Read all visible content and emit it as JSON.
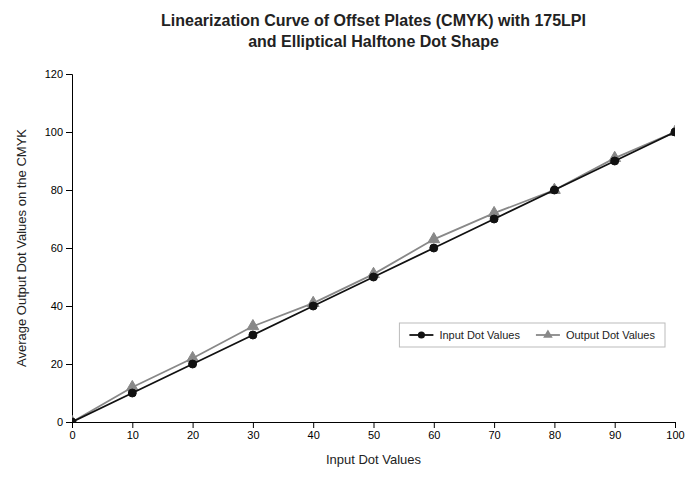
{
  "chart_data": {
    "type": "line",
    "title": "Linearization Curve of Offset Plates (CMYK) with 175LPI\nand Elliptical Halftone Dot Shape",
    "xlabel": "Input Dot Values",
    "ylabel": "Average Output Dot Values on the CMYK",
    "x": [
      0,
      10,
      20,
      30,
      40,
      50,
      60,
      70,
      80,
      90,
      100
    ],
    "series": [
      {
        "name": "Input Dot Values",
        "color": "#111111",
        "marker": "circle",
        "line_style": "solid",
        "values": [
          0,
          10,
          20,
          30,
          40,
          50,
          60,
          70,
          80,
          90,
          100
        ]
      },
      {
        "name": "Output Dot Values",
        "color": "#888888",
        "marker": "triangle",
        "line_style": "solid",
        "values": [
          0,
          12,
          22,
          33,
          41,
          51,
          63,
          72,
          80,
          91,
          100
        ]
      }
    ],
    "xlim": [
      0,
      100
    ],
    "ylim": [
      0,
      120
    ],
    "xticks": [
      0,
      10,
      20,
      30,
      40,
      50,
      60,
      70,
      80,
      90,
      100
    ],
    "yticks": [
      0,
      20,
      40,
      60,
      80,
      100,
      120
    ],
    "grid": false,
    "legend": "right"
  }
}
